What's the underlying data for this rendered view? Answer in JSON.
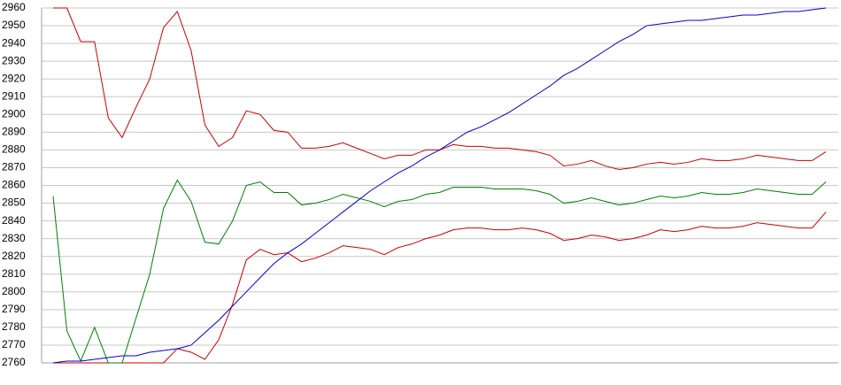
{
  "chart_data": {
    "type": "line",
    "categories": [
      null,
      null,
      null,
      null,
      null,
      null,
      null,
      null,
      null,
      null,
      null,
      null,
      null,
      null,
      null,
      null,
      null,
      null,
      null,
      null,
      null,
      null,
      null,
      null,
      null,
      null,
      null,
      null,
      null,
      null,
      null,
      null,
      null,
      null,
      null,
      null,
      null,
      null,
      null,
      null,
      null,
      null,
      null,
      null,
      null,
      null,
      null,
      null,
      null,
      null,
      null,
      null,
      null,
      null,
      null,
      null,
      null
    ],
    "series": [
      {
        "color": "#cc0000",
        "values": [
          2960,
          2960,
          2941,
          2941,
          2898,
          2887,
          2904,
          2920,
          2949,
          2958,
          2936,
          2894,
          2882,
          2887,
          2902,
          2900,
          2891,
          2890,
          2881,
          2881,
          2882,
          2884,
          2881,
          2878,
          2875,
          2877,
          2877,
          2880,
          2880,
          2883,
          2882,
          2882,
          2881,
          2881,
          2880,
          2879,
          2877,
          2871,
          2872,
          2874,
          2871,
          2869,
          2870,
          2872,
          2873,
          2872,
          2873,
          2875,
          2874,
          2874,
          2875,
          2877,
          2876,
          2875,
          2874,
          2874,
          2879
        ]
      },
      {
        "color": "#cc0000",
        "values": [
          2760,
          2760,
          2760,
          2760,
          2760,
          2760,
          2760,
          2760,
          2760,
          2768,
          2766,
          2762,
          2773,
          2793,
          2818,
          2824,
          2821,
          2822,
          2817,
          2819,
          2822,
          2826,
          2825,
          2824,
          2821,
          2825,
          2827,
          2830,
          2832,
          2835,
          2836,
          2836,
          2835,
          2835,
          2836,
          2835,
          2833,
          2829,
          2830,
          2832,
          2831,
          2829,
          2830,
          2832,
          2835,
          2834,
          2835,
          2837,
          2836,
          2836,
          2837,
          2839,
          2838,
          2837,
          2836,
          2836,
          2845
        ]
      },
      {
        "color": "#008000",
        "values": [
          2854,
          2778,
          2761,
          2780,
          2760,
          2760,
          2785,
          2810,
          2847,
          2863,
          2851,
          2828,
          2827,
          2840,
          2860,
          2862,
          2856,
          2856,
          2849,
          2850,
          2852,
          2855,
          2853,
          2851,
          2848,
          2851,
          2852,
          2855,
          2856,
          2859,
          2859,
          2859,
          2858,
          2858,
          2858,
          2857,
          2855,
          2850,
          2851,
          2853,
          2851,
          2849,
          2850,
          2852,
          2854,
          2853,
          2854,
          2856,
          2855,
          2855,
          2856,
          2858,
          2857,
          2856,
          2855,
          2855,
          2862
        ]
      },
      {
        "color": "#0000dd",
        "values": [
          2760,
          2761,
          2761,
          2762,
          2763,
          2764,
          2764,
          2766,
          2767,
          2768,
          2770,
          2777,
          2784,
          2792,
          2800,
          2808,
          2816,
          2822,
          2827,
          2833,
          2839,
          2845,
          2851,
          2857,
          2862,
          2867,
          2871,
          2876,
          2880,
          2885,
          2890,
          2893,
          2897,
          2901,
          2906,
          2911,
          2916,
          2922,
          2926,
          2931,
          2936,
          2941,
          2945,
          2950,
          2951,
          2952,
          2953,
          2953,
          2954,
          2955,
          2956,
          2956,
          2957,
          2958,
          2958,
          2959,
          2960
        ]
      }
    ],
    "ylim": [
      2760,
      2960
    ],
    "yticks": [
      2760,
      2770,
      2780,
      2790,
      2800,
      2810,
      2820,
      2830,
      2840,
      2850,
      2860,
      2870,
      2880,
      2890,
      2900,
      2910,
      2920,
      2930,
      2940,
      2950,
      2960
    ],
    "grid": true
  }
}
